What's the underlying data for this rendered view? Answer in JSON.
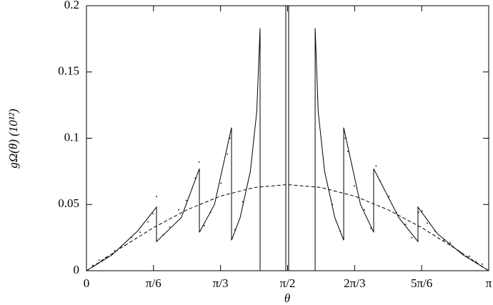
{
  "chart_data": {
    "type": "line",
    "xlabel": "θ",
    "ylabel": "gΩ(θ) (10¹²)",
    "xlim": [
      0,
      3.1416
    ],
    "ylim": [
      0,
      0.2
    ],
    "xticks": [
      0,
      {
        "value": 0.5236,
        "label": "π/6"
      },
      {
        "value": 1.0472,
        "label": "π/3"
      },
      {
        "value": 1.5708,
        "label": "π/2"
      },
      {
        "value": 2.0944,
        "label": "2π/3"
      },
      {
        "value": 2.618,
        "label": "5π/6"
      },
      {
        "value": 3.1416,
        "label": "π"
      }
    ],
    "yticks": [
      0,
      0.05,
      0.1,
      0.15,
      0.2
    ],
    "series": [
      {
        "style": "solid",
        "color": "#000000",
        "x": [
          0,
          0.2,
          0.4,
          0.547,
          0.547,
          0.74,
          0.882,
          0.882,
          1.0,
          1.133,
          1.133,
          1.2,
          1.28,
          1.33,
          1.356,
          1.356,
          1.557,
          1.557,
          1.579,
          1.579,
          1.786,
          1.786,
          1.81,
          1.86,
          1.94,
          2.009,
          2.009,
          2.14,
          2.243,
          2.243,
          2.44,
          2.589,
          2.589,
          2.74,
          2.94,
          3.1416
        ],
        "values": [
          0,
          0.012,
          0.03,
          0.048,
          0.022,
          0.04,
          0.077,
          0.029,
          0.05,
          0.108,
          0.023,
          0.04,
          0.075,
          0.12,
          0.183,
          0,
          0,
          0.2,
          0.2,
          0,
          0,
          0.183,
          0.12,
          0.075,
          0.04,
          0.023,
          0.108,
          0.05,
          0.029,
          0.077,
          0.04,
          0.022,
          0.048,
          0.028,
          0.012,
          0
        ]
      },
      {
        "style": "dashed",
        "color": "#000000",
        "x": [
          0,
          0.2618,
          0.5236,
          0.7854,
          1.0472,
          1.309,
          1.5708,
          1.8326,
          2.0944,
          2.3562,
          2.618,
          2.8798,
          3.1416
        ],
        "values": [
          0,
          0.0168,
          0.0325,
          0.046,
          0.0563,
          0.0628,
          0.065,
          0.0628,
          0.0563,
          0.046,
          0.0325,
          0.0168,
          0
        ]
      },
      {
        "style": "points",
        "color": "#000000",
        "x": [
          0.05,
          0.1,
          0.15,
          0.22,
          0.3,
          0.35,
          0.42,
          0.48,
          0.52,
          0.547,
          0.6,
          0.65,
          0.72,
          0.78,
          0.85,
          0.88,
          0.92,
          0.97,
          1.05,
          1.1,
          1.12,
          1.16,
          1.22,
          3.0916,
          3.0416,
          2.9916,
          2.9216,
          2.8416,
          2.7916,
          2.7216,
          2.6616,
          2.6216,
          2.5946,
          2.5416,
          2.4916,
          2.4216,
          2.3616,
          2.2916,
          2.2616,
          2.2216,
          2.1716,
          2.0916,
          2.0416,
          2.0216,
          1.9816,
          1.9216
        ],
        "values": [
          0.004,
          0.008,
          0.01,
          0.015,
          0.019,
          0.025,
          0.029,
          0.037,
          0.043,
          0.056,
          0.027,
          0.033,
          0.046,
          0.053,
          0.07,
          0.082,
          0.034,
          0.044,
          0.066,
          0.088,
          0.1,
          0.031,
          0.052,
          0.005,
          0.007,
          0.011,
          0.014,
          0.021,
          0.023,
          0.03,
          0.036,
          0.045,
          0.044,
          0.025,
          0.035,
          0.044,
          0.056,
          0.068,
          0.079,
          0.032,
          0.046,
          0.064,
          0.09,
          0.1,
          0.03,
          0.05
        ]
      }
    ]
  }
}
